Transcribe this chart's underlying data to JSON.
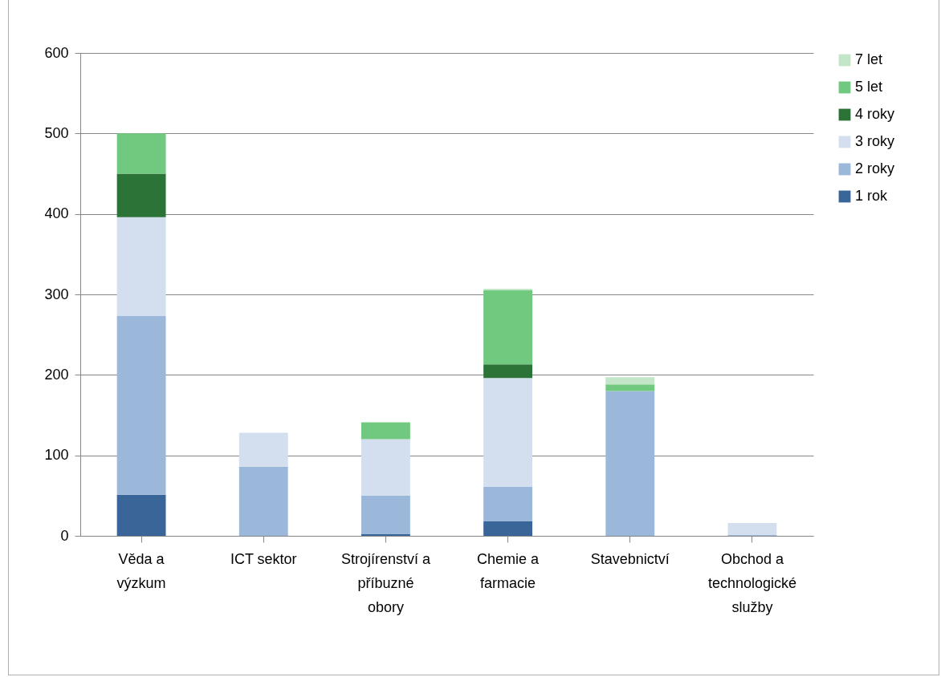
{
  "chart_data": {
    "type": "bar",
    "stacked": true,
    "categories": [
      "Věda a výzkum",
      "ICT sektor",
      "Strojírenství a příbuzné obory",
      "Chemie a farmacie",
      "Stavebnictví",
      "Obchod a technologické služby"
    ],
    "series": [
      {
        "name": "1 rok",
        "color": "#3a6599",
        "values": [
          51,
          null,
          2,
          18,
          null,
          null
        ]
      },
      {
        "name": "2 roky",
        "color": "#9bb7da",
        "values": [
          222,
          86,
          48,
          43,
          180,
          1
        ]
      },
      {
        "name": "3 roky",
        "color": "#d3dfee",
        "values": [
          123,
          42,
          70,
          135,
          null,
          15
        ]
      },
      {
        "name": "4 roky",
        "color": "#2b7337",
        "values": [
          54,
          null,
          null,
          17,
          null,
          null
        ]
      },
      {
        "name": "5 let",
        "color": "#71c97f",
        "values": [
          50,
          null,
          21,
          92,
          8,
          null
        ]
      },
      {
        "name": "7 let",
        "color": "#c2e6c7",
        "values": [
          null,
          null,
          null,
          2,
          9,
          null
        ]
      }
    ],
    "ylim": [
      0,
      600
    ],
    "yticks": [
      0,
      100,
      200,
      300,
      400,
      500,
      600
    ],
    "grid": "y",
    "legend": "right"
  }
}
